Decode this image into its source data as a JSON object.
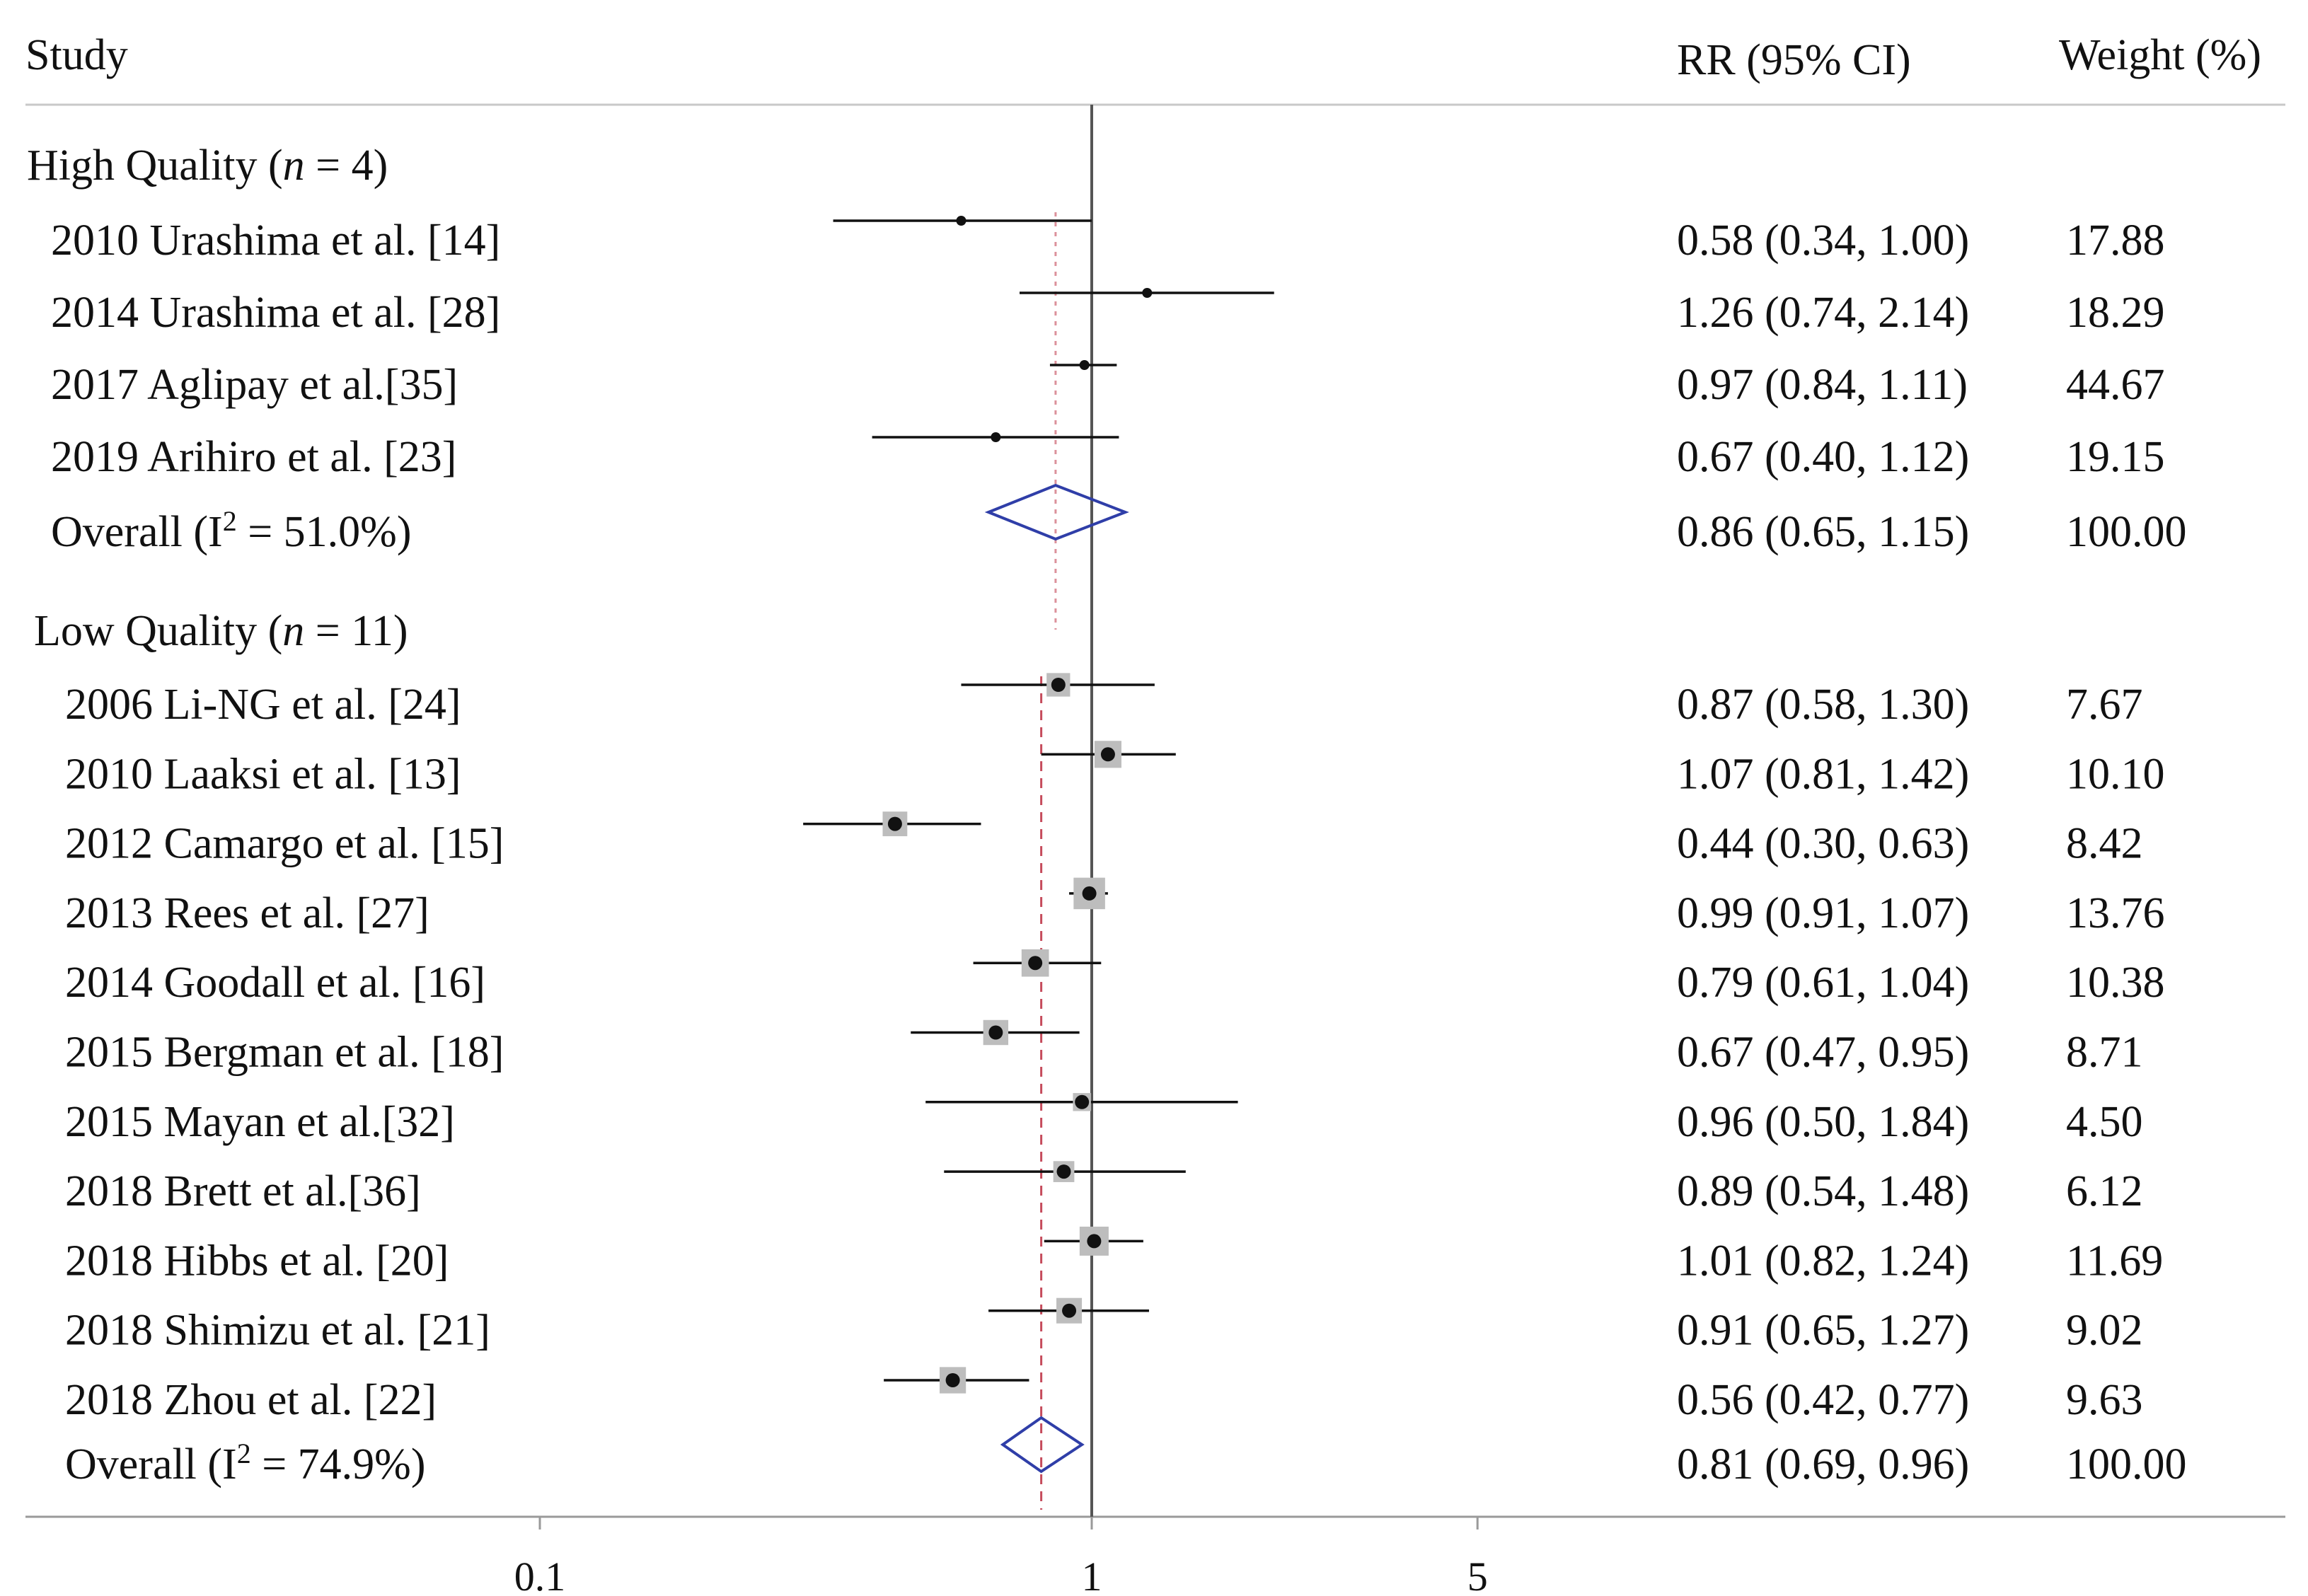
{
  "chart_data": {
    "type": "forest",
    "scale": "log",
    "x_ticks": [
      0.1,
      1,
      5
    ],
    "x_tick_labels": [
      "0.1",
      "1",
      "5"
    ],
    "null_line": 1,
    "columns": {
      "study": "Study",
      "rr": "RR (95% CI)",
      "weight": "Weight (%)"
    },
    "groups": [
      {
        "title_main": "High Quality (",
        "title_n": "n",
        "title_rest": " = 4)",
        "studies": [
          {
            "label": "2010 Urashima et al. [14]",
            "rr": 0.58,
            "lo": 0.34,
            "hi": 1.0,
            "rr_text": "0.58 (0.34, 1.00)",
            "weight": "17.88"
          },
          {
            "label": "2014 Urashima et al. [28]",
            "rr": 1.26,
            "lo": 0.74,
            "hi": 2.14,
            "rr_text": "1.26 (0.74, 2.14)",
            "weight": "18.29"
          },
          {
            "label": "2017 Aglipay et al.[35]",
            "rr": 0.97,
            "lo": 0.84,
            "hi": 1.11,
            "rr_text": "0.97 (0.84, 1.11)",
            "weight": "44.67"
          },
          {
            "label": "2019 Arihiro et al. [23]",
            "rr": 0.67,
            "lo": 0.4,
            "hi": 1.12,
            "rr_text": "0.67 (0.40, 1.12)",
            "weight": "19.15"
          }
        ],
        "overall": {
          "label_pre": "Overall  (I",
          "label_sup": "2",
          "label_post": " = 51.0%)",
          "rr": 0.86,
          "lo": 0.65,
          "hi": 1.15,
          "rr_text": "0.86 (0.65, 1.15)",
          "weight": "100.00"
        }
      },
      {
        "title_main": "Low Quality (",
        "title_n": "n",
        "title_rest": " = 11)",
        "studies": [
          {
            "label": "2006 Li-NG et al. [24]",
            "rr": 0.87,
            "lo": 0.58,
            "hi": 1.3,
            "rr_text": "0.87 (0.58, 1.30)",
            "weight": "7.67"
          },
          {
            "label": "2010 Laaksi et al. [13]",
            "rr": 1.07,
            "lo": 0.81,
            "hi": 1.42,
            "rr_text": "1.07 (0.81, 1.42)",
            "weight": "10.10"
          },
          {
            "label": "2012 Camargo et al. [15]",
            "rr": 0.44,
            "lo": 0.3,
            "hi": 0.63,
            "rr_text": "0.44 (0.30, 0.63)",
            "weight": "8.42"
          },
          {
            "label": "2013 Rees et al. [27]",
            "rr": 0.99,
            "lo": 0.91,
            "hi": 1.07,
            "rr_text": "0.99 (0.91, 1.07)",
            "weight": "13.76"
          },
          {
            "label": "2014 Goodall et al. [16]",
            "rr": 0.79,
            "lo": 0.61,
            "hi": 1.04,
            "rr_text": "0.79 (0.61, 1.04)",
            "weight": "10.38"
          },
          {
            "label": "2015 Bergman et al. [18]",
            "rr": 0.67,
            "lo": 0.47,
            "hi": 0.95,
            "rr_text": "0.67 (0.47, 0.95)",
            "weight": "8.71"
          },
          {
            "label": "2015 Mayan et al.[32]",
            "rr": 0.96,
            "lo": 0.5,
            "hi": 1.84,
            "rr_text": "0.96 (0.50, 1.84)",
            "weight": "4.50"
          },
          {
            "label": "2018 Brett et al.[36]",
            "rr": 0.89,
            "lo": 0.54,
            "hi": 1.48,
            "rr_text": "0.89 (0.54, 1.48)",
            "weight": "6.12"
          },
          {
            "label": "2018 Hibbs et al. [20]",
            "rr": 1.01,
            "lo": 0.82,
            "hi": 1.24,
            "rr_text": "1.01 (0.82, 1.24)",
            "weight": "11.69"
          },
          {
            "label": "2018 Shimizu et al. [21]",
            "rr": 0.91,
            "lo": 0.65,
            "hi": 1.27,
            "rr_text": "0.91 (0.65, 1.27)",
            "weight": "9.02"
          },
          {
            "label": "2018 Zhou et al. [22]",
            "rr": 0.56,
            "lo": 0.42,
            "hi": 0.77,
            "rr_text": "0.56 (0.42, 0.77)",
            "weight": "9.63"
          }
        ],
        "overall": {
          "label_pre": "Overall  (I",
          "label_sup": "2",
          "label_post": " = 74.9%)",
          "rr": 0.81,
          "lo": 0.69,
          "hi": 0.96,
          "rr_text": "0.81 (0.69, 0.96)",
          "weight": "100.00"
        }
      }
    ],
    "colors": {
      "text": "#111111",
      "ci_line": "#111111",
      "weight_box": "#bdbdbd",
      "diamond": "#2f3ea8",
      "pooled_line": "#c0394b",
      "axis": "#9a9a9a",
      "null_line": "#555555"
    }
  }
}
